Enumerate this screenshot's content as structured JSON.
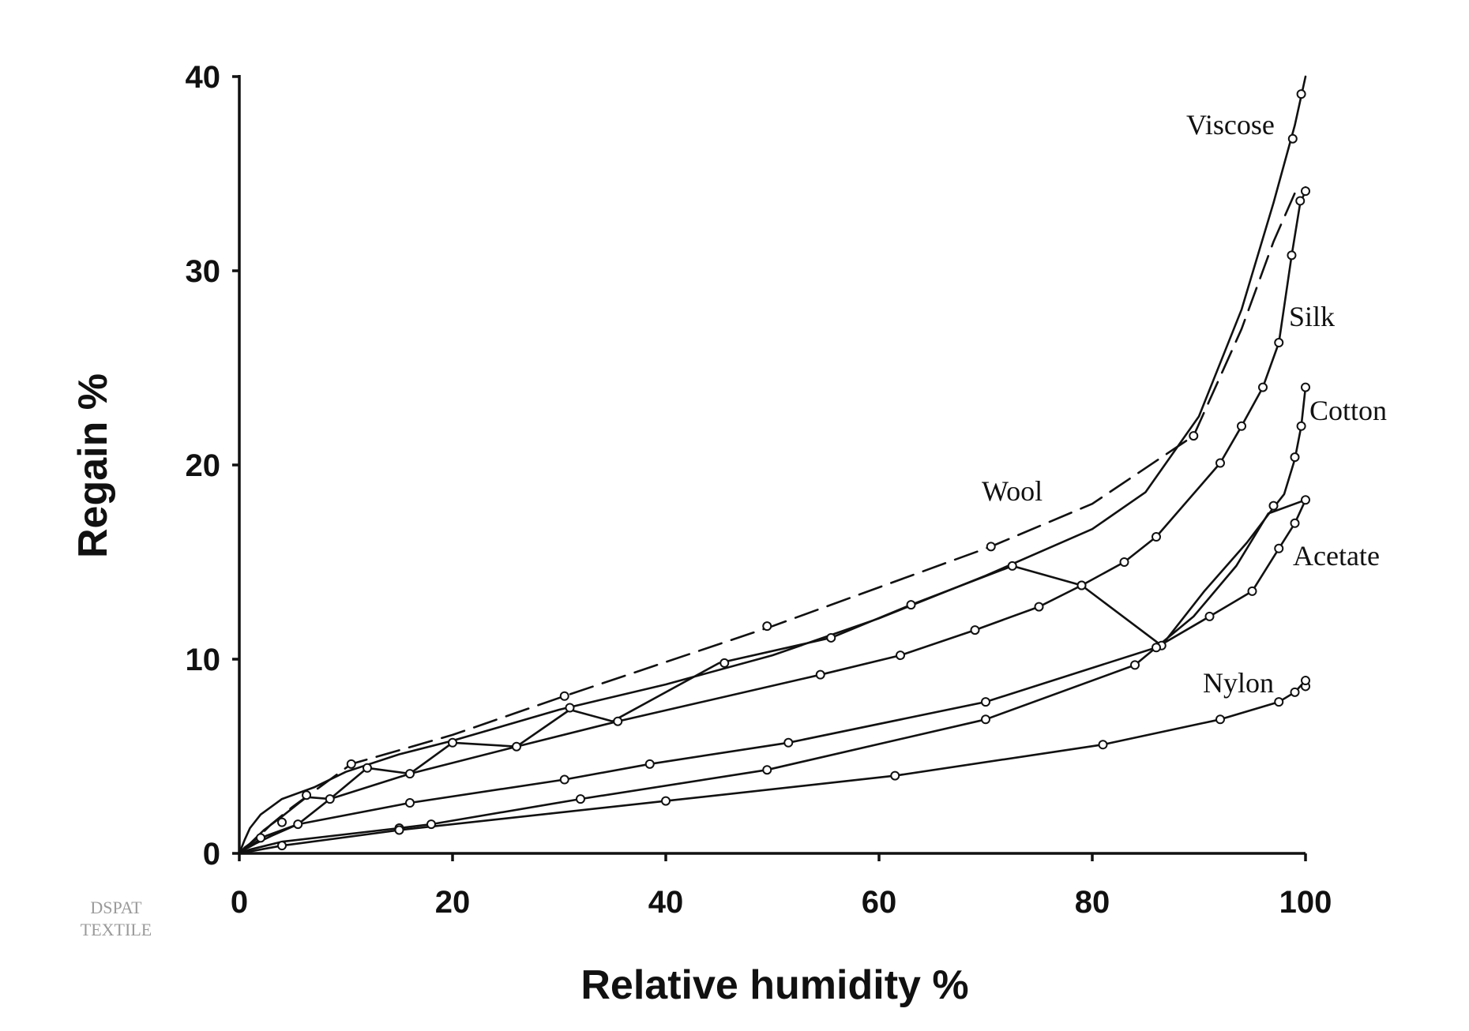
{
  "watermark": {
    "line1": "DSPAT",
    "line2": "TEXTILE"
  },
  "chart_data": {
    "type": "line",
    "title": "",
    "xlabel": "Relative humidity %",
    "ylabel": "Regain %",
    "xlim": [
      0,
      100
    ],
    "ylim": [
      0,
      40
    ],
    "xticks": [
      0,
      20,
      40,
      60,
      80,
      100
    ],
    "yticks": [
      0,
      10,
      20,
      30,
      40
    ],
    "legend": "none (curves labelled directly)",
    "grid": false,
    "series": [
      {
        "name": "Viscose",
        "style": "solid",
        "markers": false,
        "points": [
          [
            0,
            0
          ],
          [
            0.5,
            0.7
          ],
          [
            1,
            1.3
          ],
          [
            2,
            2
          ],
          [
            4,
            2.8
          ],
          [
            7,
            3.4
          ],
          [
            10,
            4.2
          ],
          [
            15,
            5.1
          ],
          [
            20,
            5.8
          ],
          [
            30,
            7.4
          ],
          [
            40,
            8.7
          ],
          [
            50,
            10.2
          ],
          [
            60,
            12.1
          ],
          [
            70,
            14.3
          ],
          [
            80,
            16.7
          ],
          [
            85,
            18.6
          ],
          [
            90,
            22.5
          ],
          [
            94,
            28
          ],
          [
            97,
            33.5
          ],
          [
            99,
            37.5
          ],
          [
            100,
            40
          ]
        ],
        "marker_points": [
          [
            98.8,
            36.8
          ],
          [
            99.6,
            39.1
          ]
        ]
      },
      {
        "name": "Wool",
        "style": "dashed",
        "markers": true,
        "points": [
          [
            0,
            0
          ],
          [
            0.5,
            0.3
          ],
          [
            1.5,
            0.7
          ],
          [
            3,
            1.5
          ],
          [
            5,
            2.4
          ],
          [
            7.5,
            3.4
          ],
          [
            10.5,
            4.6
          ],
          [
            20,
            6.1
          ],
          [
            30.5,
            8.1
          ],
          [
            50,
            11.7
          ],
          [
            70.5,
            15.8
          ],
          [
            80,
            18
          ],
          [
            89.5,
            21.5
          ],
          [
            94,
            27
          ],
          [
            97,
            31.5
          ],
          [
            99,
            34
          ],
          [
            100,
            34.3
          ]
        ],
        "marker_points": [
          [
            10.5,
            4.6
          ],
          [
            30.5,
            8.1
          ],
          [
            49.5,
            11.7
          ],
          [
            70.5,
            15.8
          ],
          [
            89.5,
            21.5
          ]
        ]
      },
      {
        "name": "Silk",
        "style": "solid",
        "markers": true,
        "points": [
          [
            0,
            0
          ],
          [
            1,
            0.5
          ],
          [
            2.3,
            1.2
          ],
          [
            4,
            1.9
          ],
          [
            6.3,
            2.9
          ],
          [
            8.5,
            2.8
          ],
          [
            12,
            4.4
          ],
          [
            16,
            4.1
          ],
          [
            20,
            5.7
          ],
          [
            26,
            5.5
          ],
          [
            31,
            7.4
          ],
          [
            35,
            6.8
          ],
          [
            45,
            9.8
          ],
          [
            55.5,
            11.1
          ],
          [
            63,
            12.8
          ],
          [
            72.5,
            14.8
          ],
          [
            79,
            13.8
          ],
          [
            83,
            15
          ],
          [
            86,
            16.3
          ],
          [
            92,
            20.1
          ],
          [
            94,
            22
          ],
          [
            96,
            24
          ],
          [
            97.5,
            26.3
          ],
          [
            98.7,
            30.8
          ],
          [
            99.5,
            33.5
          ],
          [
            100,
            34.1
          ]
        ],
        "marker_points": [
          [
            4,
            1.6
          ],
          [
            6.3,
            3
          ],
          [
            12,
            4.4
          ],
          [
            20,
            5.7
          ],
          [
            31,
            7.5
          ],
          [
            45.5,
            9.8
          ],
          [
            55.5,
            11.1
          ],
          [
            63,
            12.8
          ],
          [
            72.5,
            14.8
          ],
          [
            79,
            13.8
          ],
          [
            83,
            15
          ],
          [
            86,
            16.3
          ],
          [
            92,
            20.1
          ],
          [
            94,
            22
          ],
          [
            96,
            24
          ],
          [
            97.5,
            26.3
          ],
          [
            98.7,
            30.8
          ],
          [
            99.5,
            33.6
          ],
          [
            100,
            34.1
          ]
        ]
      },
      {
        "name": "Cotton",
        "style": "solid",
        "markers": true,
        "points": [
          [
            0,
            0
          ],
          [
            1,
            0.4
          ],
          [
            2.5,
            0.9
          ],
          [
            5.5,
            1.5
          ],
          [
            8.5,
            2.8
          ],
          [
            16,
            4.1
          ],
          [
            26,
            5.5
          ],
          [
            35.5,
            6.8
          ],
          [
            54.5,
            9.2
          ],
          [
            62,
            10.2
          ],
          [
            69,
            11.5
          ],
          [
            75,
            12.7
          ],
          [
            79,
            13.8
          ],
          [
            86.5,
            10.7
          ],
          [
            90.5,
            13.5
          ],
          [
            94.5,
            16
          ],
          [
            97,
            17.8
          ],
          [
            98,
            18.5
          ],
          [
            99,
            20.3
          ],
          [
            99.6,
            22
          ],
          [
            100,
            24
          ]
        ],
        "marker_points": [
          [
            8.5,
            2.8
          ],
          [
            16,
            4.1
          ],
          [
            26,
            5.5
          ],
          [
            35.5,
            6.8
          ],
          [
            54.5,
            9.2
          ],
          [
            62,
            10.2
          ],
          [
            69,
            11.5
          ],
          [
            75,
            12.7
          ],
          [
            79,
            13.8
          ],
          [
            86.5,
            10.7
          ],
          [
            97,
            17.9
          ],
          [
            99,
            20.4
          ],
          [
            99.6,
            22
          ],
          [
            100,
            24
          ]
        ]
      },
      {
        "name": "Acetate",
        "style": "solid",
        "markers": true,
        "points": [
          [
            0,
            0
          ],
          [
            0.5,
            0.2
          ],
          [
            1.5,
            0.5
          ],
          [
            3,
            0.9
          ],
          [
            5.5,
            1.5
          ],
          [
            16,
            2.6
          ],
          [
            30.5,
            3.8
          ],
          [
            38.5,
            4.6
          ],
          [
            51.5,
            5.7
          ],
          [
            70,
            7.8
          ],
          [
            86,
            10.6
          ],
          [
            91,
            12.2
          ],
          [
            95,
            13.5
          ],
          [
            97.5,
            15.7
          ],
          [
            99,
            17
          ],
          [
            100,
            18.2
          ]
        ],
        "marker_points": [
          [
            2,
            0.8
          ],
          [
            5.5,
            1.5
          ],
          [
            16,
            2.6
          ],
          [
            30.5,
            3.8
          ],
          [
            38.5,
            4.6
          ],
          [
            51.5,
            5.7
          ],
          [
            70,
            7.8
          ],
          [
            86,
            10.6
          ],
          [
            91,
            12.2
          ],
          [
            95,
            13.5
          ],
          [
            97.5,
            15.7
          ],
          [
            99,
            17
          ],
          [
            100,
            18.2
          ]
        ]
      },
      {
        "name": "Nylon",
        "style": "solid",
        "markers": true,
        "points": [
          [
            0,
            0
          ],
          [
            1,
            0.2
          ],
          [
            2.5,
            0.4
          ],
          [
            4,
            0.6
          ],
          [
            15,
            1.3
          ],
          [
            18,
            1.5
          ],
          [
            32,
            2.8
          ],
          [
            49.5,
            4.3
          ],
          [
            70,
            6.9
          ],
          [
            84,
            9.7
          ],
          [
            89.5,
            12.2
          ],
          [
            93.5,
            14.8
          ],
          [
            96.5,
            17.5
          ],
          [
            100,
            18.2
          ]
        ],
        "marker_points": [
          [
            15,
            1.3
          ],
          [
            18,
            1.5
          ],
          [
            32,
            2.8
          ],
          [
            49.5,
            4.3
          ],
          [
            70,
            6.9
          ],
          [
            84,
            9.7
          ]
        ]
      },
      {
        "name": "Nylon-low",
        "label_visible": false,
        "style": "solid",
        "markers": true,
        "points": [
          [
            0,
            0
          ],
          [
            1.5,
            0.15
          ],
          [
            4,
            0.4
          ],
          [
            15,
            1.2
          ],
          [
            40,
            2.7
          ],
          [
            61.5,
            4
          ],
          [
            81,
            5.6
          ],
          [
            92,
            6.9
          ],
          [
            97.5,
            7.8
          ],
          [
            99,
            8.3
          ],
          [
            100,
            8.9
          ]
        ],
        "marker_points": [
          [
            4,
            0.4
          ],
          [
            15,
            1.2
          ],
          [
            40,
            2.7
          ],
          [
            61.5,
            4
          ],
          [
            81,
            5.6
          ],
          [
            92,
            6.9
          ],
          [
            97.5,
            7.8
          ],
          [
            99,
            8.3
          ],
          [
            100,
            8.6
          ],
          [
            100,
            8.9
          ]
        ]
      }
    ],
    "labels": [
      {
        "text": "Viscose",
        "series": "Viscose"
      },
      {
        "text": "Silk",
        "series": "Silk"
      },
      {
        "text": "Cotton",
        "series": "Cotton"
      },
      {
        "text": "Wool",
        "series": "Wool"
      },
      {
        "text": "Acetate",
        "series": "Acetate"
      },
      {
        "text": "Nylon",
        "series": "Nylon-low"
      }
    ]
  }
}
